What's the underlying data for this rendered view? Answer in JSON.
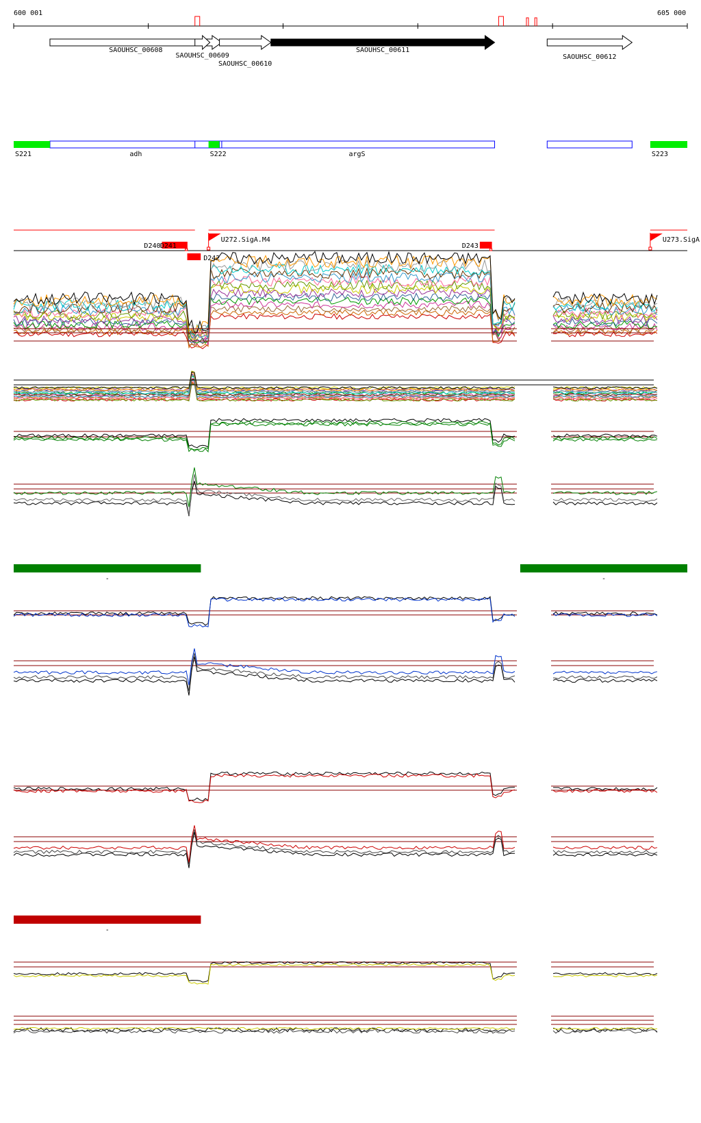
{
  "ruler": {
    "start_label": "600 001",
    "end_label": "605 000",
    "start": 600001,
    "end": 605000,
    "promoter_marks": [
      601346,
      603600,
      603806,
      603868
    ]
  },
  "genes": [
    {
      "id": "SAOUHSC_00608",
      "start": 600270,
      "end": 601545,
      "strand": "+",
      "filled": false
    },
    {
      "id": "SAOUHSC_00609",
      "start": 601346,
      "end": 601457,
      "strand": "+",
      "filled": false
    },
    {
      "id": "SAOUHSC_00610",
      "start": 601528,
      "end": 601910,
      "strand": "+",
      "filled": false
    },
    {
      "id": "SAOUHSC_00611",
      "start": 601910,
      "end": 603570,
      "strand": "+",
      "filled": true
    },
    {
      "id": "SAOUHSC_00612",
      "start": 603960,
      "end": 604590,
      "strand": "+",
      "filled": false
    }
  ],
  "segments": {
    "green": [
      {
        "label": "S221",
        "start": 600001,
        "end": 600270
      },
      {
        "label": "S222",
        "start": 601447,
        "end": 601528
      },
      {
        "label": "S223",
        "start": 604725,
        "end": 605000
      }
    ],
    "blue": [
      {
        "label": "adh",
        "start": 600270,
        "end": 601545
      },
      {
        "label": "",
        "start": 601346,
        "end": 601457
      },
      {
        "label": "argS",
        "start": 601528,
        "end": 603570
      },
      {
        "label": "",
        "start": 603960,
        "end": 604590
      }
    ]
  },
  "transcripts": {
    "lines": [
      {
        "start": 600001,
        "end": 601346
      },
      {
        "start": 601447,
        "end": 603570
      },
      {
        "start": 604725,
        "end": 605000
      }
    ],
    "down_features": [
      {
        "label": "D240",
        "start": 601101,
        "end": 601290
      },
      {
        "label": "D241",
        "start": 601220,
        "end": 601290
      },
      {
        "label": "D243",
        "start": 603460,
        "end": 603550
      }
    ],
    "d242": {
      "label": "D242",
      "start": 601350,
      "end": 601450
    },
    "up_flags": [
      {
        "label": "U272.SigA.M4",
        "pos": 601447
      },
      {
        "label": "U273.SigA",
        "pos": 604725
      }
    ]
  },
  "conditions": [
    {
      "label": "-",
      "color": "#008000",
      "start": 600001,
      "end": 601390
    },
    {
      "label": "-",
      "color": "#008000",
      "start": 603760,
      "end": 605000
    },
    {
      "label": "-",
      "color": "#c00000",
      "start": 600001,
      "end": 601390
    }
  ],
  "colors": {
    "gene_filled": "#000000",
    "segment_green": "#00ee00",
    "segment_blue": "#0000ff",
    "feature_red": "#ff0000",
    "threshold": "#8b0000",
    "green_track": "#008000",
    "blue_track": "#0033cc",
    "red_track": "#cc0000",
    "yellow_track": "#cccc00"
  }
}
